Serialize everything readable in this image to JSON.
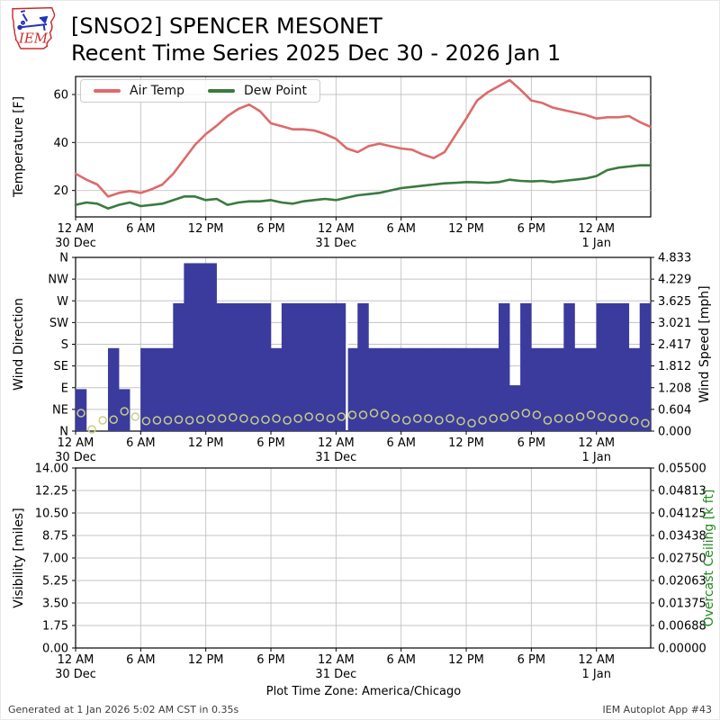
{
  "header": {
    "title_line1": "[SNSO2] SPENCER MESONET",
    "title_line2": "Recent Time Series 2025 Dec 30 - 2026 Jan 1",
    "logo_text": "IEM"
  },
  "footer": {
    "generated": "Generated at 1 Jan 2026 5:02 AM CST in 0.35s",
    "app": "IEM Autoplot App #43"
  },
  "time_axis": {
    "timezone_label": "Plot Time Zone: America/Chicago",
    "total_hours": 53,
    "tick_hours": [
      0,
      6,
      12,
      18,
      24,
      30,
      36,
      42,
      48
    ],
    "tick_labels": [
      "12 AM",
      "6 AM",
      "12 PM",
      "6 PM",
      "12 AM",
      "6 AM",
      "12 PM",
      "6 PM",
      "12 AM"
    ],
    "day_labels": [
      {
        "hour": 0,
        "label": "30 Dec"
      },
      {
        "hour": 24,
        "label": "31 Dec"
      },
      {
        "hour": 48,
        "label": "1 Jan"
      }
    ]
  },
  "colors": {
    "air_temp": "#dd6a6a",
    "dew_point": "#3a7a3f",
    "wind_bar": "#3b3b9d",
    "wind_speed_marker": "#c9ce85",
    "overcast_label": "#228B22",
    "grid": "#c3c3c3",
    "spine": "#000000"
  },
  "chart_data": [
    {
      "type": "line",
      "name": "temperature",
      "ylabel": "Temperature [F]",
      "yticks": [
        20,
        40,
        60
      ],
      "ylim": [
        9,
        67.5
      ],
      "x_unit": "hours since 12 AM 30 Dec (America/Chicago)",
      "legend": [
        "Air Temp",
        "Dew Point"
      ],
      "legend_position": "upper left",
      "grid": true,
      "series": [
        {
          "name": "Air Temp",
          "color": "#dd6a6a",
          "values": [
            27,
            24.5,
            22.5,
            17.5,
            19,
            19.8,
            19,
            20.5,
            22.5,
            27,
            33,
            39,
            43.5,
            47,
            51,
            54,
            55.8,
            53,
            48,
            46.8,
            45.5,
            45.5,
            45,
            43.5,
            41.5,
            37.5,
            36,
            38.5,
            39.5,
            38.5,
            37.5,
            37,
            35,
            33.5,
            36,
            43,
            50,
            57.5,
            61,
            63.5,
            66,
            62,
            57.5,
            56.5,
            54.5,
            53.5,
            52.5,
            51.5,
            50,
            50.5,
            50.5,
            51,
            48.5,
            46.5
          ]
        },
        {
          "name": "Dew Point",
          "color": "#3a7a3f",
          "values": [
            14,
            15,
            14.5,
            12.5,
            14,
            15,
            13.5,
            14,
            14.5,
            16,
            17.5,
            17.5,
            16,
            16.5,
            14,
            15,
            15.5,
            15.5,
            16,
            15,
            14.5,
            15.5,
            16,
            16.5,
            16,
            17,
            18,
            18.5,
            19,
            20,
            21,
            21.5,
            22,
            22.5,
            23,
            23.2,
            23.5,
            23.4,
            23.2,
            23.5,
            24.5,
            24,
            23.8,
            24,
            23.5,
            24,
            24.5,
            25,
            26,
            28.5,
            29.5,
            30,
            30.5,
            30.5
          ]
        }
      ]
    },
    {
      "type": "bar",
      "name": "wind",
      "ylabel": "Wind Direction",
      "ytick_labels": [
        "N",
        "NE",
        "E",
        "SE",
        "S",
        "SW",
        "W",
        "NW",
        "N"
      ],
      "ylim_deg": [
        0,
        360
      ],
      "ylabel_right": "Wind Speed [mph]",
      "right_tick_labels": [
        "0.000",
        "0.604",
        "1.208",
        "1.812",
        "2.417",
        "3.021",
        "3.625",
        "4.229",
        "4.833"
      ],
      "right_ylim": [
        0,
        4.833
      ],
      "grid": true,
      "bar_series_name": "Wind Direction [deg]",
      "wind_dir_deg": [
        87,
        null,
        null,
        172,
        87,
        null,
        172,
        172,
        172,
        265,
        348,
        348,
        348,
        265,
        265,
        265,
        265,
        265,
        172,
        265,
        265,
        265,
        265,
        265,
        265,
        172,
        265,
        172,
        172,
        172,
        172,
        172,
        172,
        172,
        172,
        172,
        172,
        172,
        172,
        265,
        95,
        265,
        172,
        172,
        172,
        265,
        172,
        172,
        265,
        265,
        265,
        172,
        265
      ],
      "marker_series_name": "Wind Speed [mph]",
      "wind_speed_mph": [
        0.5,
        0.05,
        0.3,
        0.32,
        0.55,
        0.4,
        0.28,
        0.3,
        0.3,
        0.32,
        0.3,
        0.32,
        0.35,
        0.35,
        0.38,
        0.35,
        0.3,
        0.32,
        0.35,
        0.3,
        0.35,
        0.4,
        0.38,
        0.35,
        0.4,
        0.45,
        0.45,
        0.5,
        0.45,
        0.35,
        0.3,
        0.35,
        0.35,
        0.3,
        0.35,
        0.28,
        0.22,
        0.3,
        0.35,
        0.38,
        0.45,
        0.5,
        0.45,
        0.3,
        0.35,
        0.35,
        0.4,
        0.45,
        0.4,
        0.35,
        0.35,
        0.28,
        0.22
      ],
      "missing_gap_after_hour": 24
    },
    {
      "type": "line",
      "name": "visibility",
      "ylabel": "Visibility [miles]",
      "ytick_labels": [
        "0.00",
        "1.75",
        "3.50",
        "5.25",
        "7.00",
        "8.75",
        "10.50",
        "12.25",
        "14.00"
      ],
      "ylim": [
        0,
        14
      ],
      "ylabel_right": "Overcast Ceiling [k ft]",
      "right_tick_labels": [
        "0.00000",
        "0.00688",
        "0.01375",
        "0.02063",
        "0.02750",
        "0.03438",
        "0.04125",
        "0.04813",
        "0.05500"
      ],
      "right_ylim": [
        0,
        0.055
      ],
      "grid": true,
      "series": []
    }
  ]
}
